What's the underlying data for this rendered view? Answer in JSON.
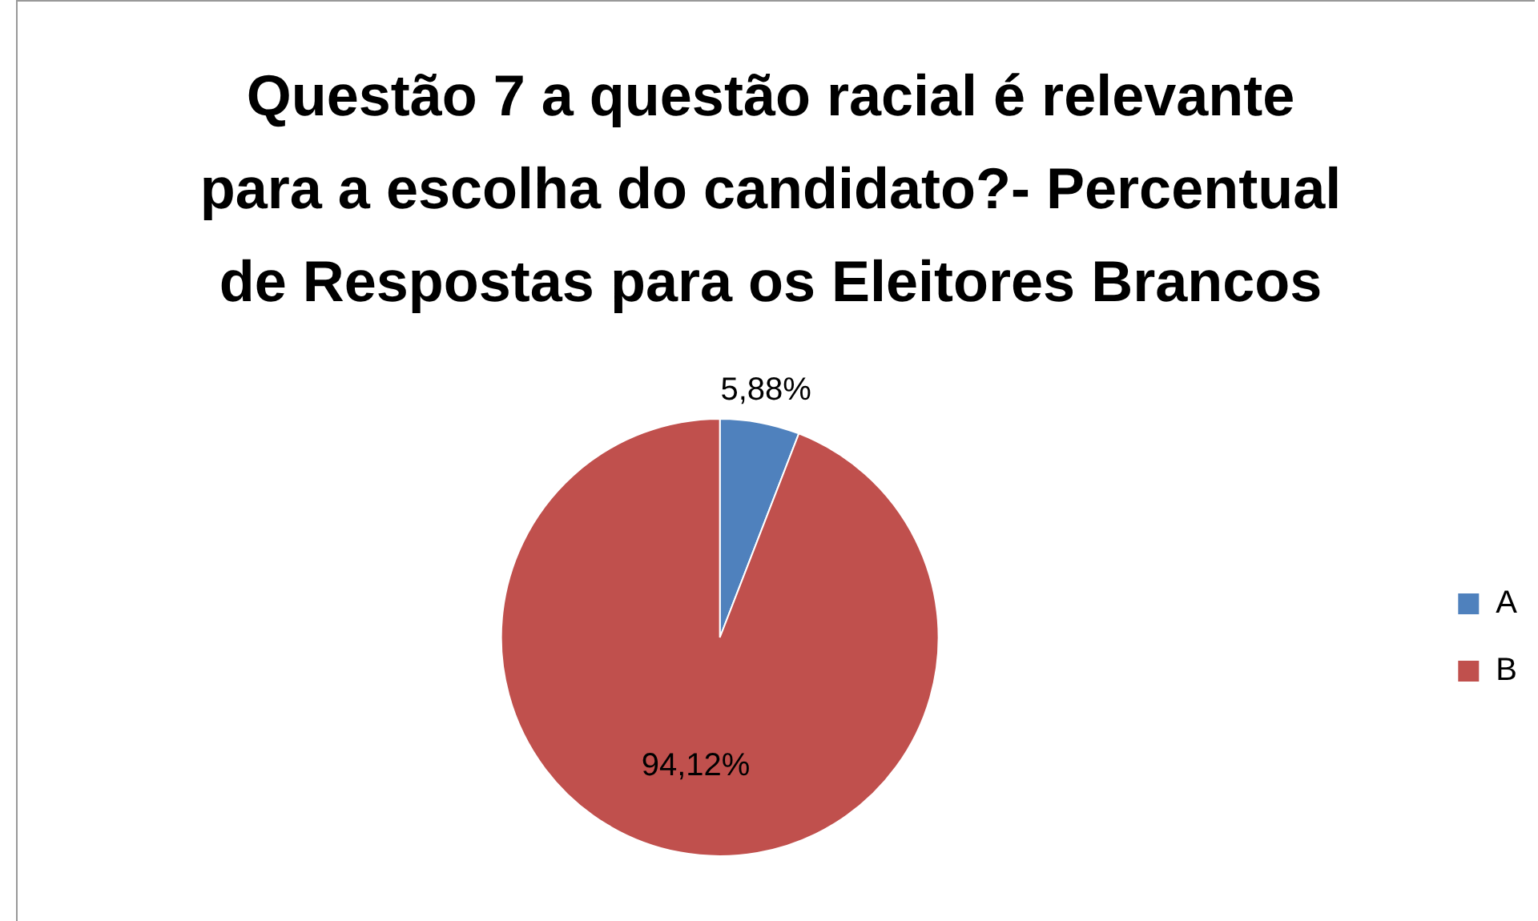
{
  "chart_data": {
    "type": "pie",
    "title": "Questão 7  a questão racial é relevante para a escolha do candidato?- Percentual de Respostas para os Eleitores Brancos",
    "categories": [
      "A",
      "B"
    ],
    "values": [
      5.88,
      94.12
    ],
    "colors": [
      "#4f81bd",
      "#c0504d"
    ],
    "value_labels": [
      "5,88%",
      "94,12%"
    ],
    "legend": "right"
  }
}
